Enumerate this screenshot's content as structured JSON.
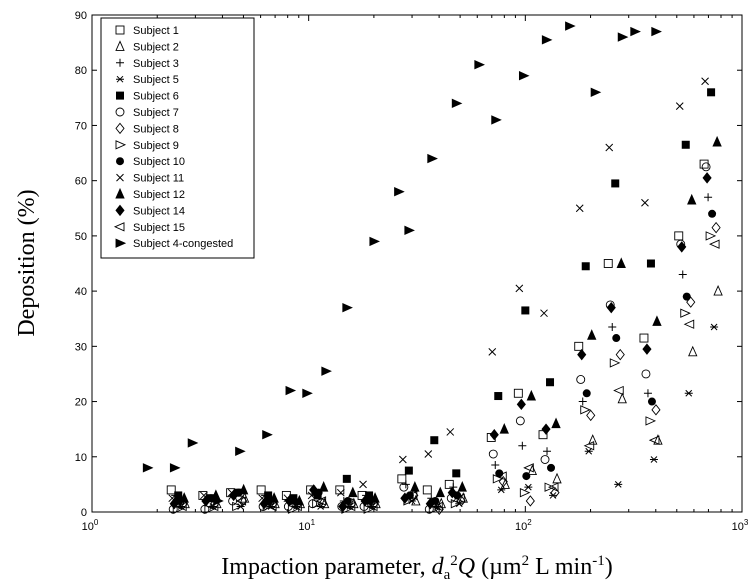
{
  "chart_data": {
    "type": "scatter",
    "xscale": "log",
    "xlim": [
      1,
      1000
    ],
    "ylim": [
      0,
      90
    ],
    "grid": false,
    "legend_position": "top-left",
    "x_ticks": [
      1,
      10,
      100,
      1000
    ],
    "x_tick_labels": [
      {
        "base": "10",
        "exp": "0"
      },
      {
        "base": "10",
        "exp": "1"
      },
      {
        "base": "10",
        "exp": "2"
      },
      {
        "base": "10",
        "exp": "3"
      }
    ],
    "y_ticks": [
      0,
      10,
      20,
      30,
      40,
      50,
      60,
      70,
      80,
      90
    ],
    "xlabel": {
      "prefix": "Impaction parameter, ",
      "d": "d",
      "d_sub": "a",
      "d_sup": "2",
      "q": "Q",
      "units_open": " (µm",
      "units_sup1": "2",
      "units_mid": " L min",
      "units_sup2": "-1",
      "units_close": ")"
    },
    "ylabel": "Deposition (%)",
    "x_groups": [
      2.5,
      3.5,
      4.7,
      6.5,
      8.5,
      11,
      15,
      19,
      29,
      38,
      48,
      75,
      100,
      130,
      190,
      260,
      380,
      550,
      720
    ],
    "series": [
      {
        "name": "Subject 1",
        "marker": "square-open",
        "values": [
          4,
          3,
          3.5,
          4,
          3,
          4,
          4,
          3,
          6,
          4,
          5,
          13.5,
          21.5,
          14,
          30,
          45,
          31.5,
          50,
          63
        ]
      },
      {
        "name": "Subject 2",
        "marker": "triangle-up-open",
        "values": [
          1.5,
          1.5,
          2.5,
          1.5,
          1.5,
          1.5,
          1.5,
          1.5,
          2,
          1.5,
          2.5,
          5,
          7.5,
          6,
          13,
          20.5,
          13,
          29,
          40
        ]
      },
      {
        "name": "Subject 3",
        "marker": "plus",
        "values": [
          3,
          2,
          3,
          3,
          2,
          3,
          2,
          3,
          5,
          2.5,
          4.5,
          8.5,
          12,
          11,
          20,
          33.5,
          21.5,
          43,
          57
        ]
      },
      {
        "name": "Subject 5",
        "marker": "asterisk",
        "values": [
          1,
          1,
          1,
          1,
          1,
          1,
          1,
          1,
          2,
          1,
          1.5,
          4,
          4.5,
          3,
          11,
          5,
          9.5,
          21.5,
          33.5
        ]
      },
      {
        "name": "Subject 6",
        "marker": "square-filled",
        "values": [
          3,
          2.5,
          3.5,
          3,
          2.5,
          3,
          6,
          3,
          7.5,
          13,
          7,
          21,
          36.5,
          23.5,
          44.5,
          59.5,
          45,
          66.5,
          76
        ]
      },
      {
        "name": "Subject 7",
        "marker": "circle-open",
        "values": [
          0.5,
          0.5,
          2,
          1,
          1,
          1.5,
          1,
          1,
          4.5,
          0.5,
          2.5,
          10.5,
          16.5,
          9.5,
          24,
          37.5,
          25,
          48.5,
          62.5
        ]
      },
      {
        "name": "Subject 8",
        "marker": "diamond-open",
        "values": [
          1.5,
          1.5,
          2,
          1.5,
          1.5,
          1.5,
          1.5,
          1.5,
          3,
          0.5,
          2,
          5.5,
          2,
          3.5,
          17.5,
          28.5,
          18.5,
          38,
          51.5
        ]
      },
      {
        "name": "Subject 9",
        "marker": "triangle-right-open",
        "values": [
          0.5,
          0.5,
          1,
          1,
          0.5,
          1.5,
          0.5,
          0.5,
          2,
          0.5,
          1.5,
          6,
          3.5,
          4.5,
          18.5,
          27,
          16.5,
          36,
          50
        ]
      },
      {
        "name": "Subject 10",
        "marker": "circle-filled",
        "values": [
          2,
          2.5,
          3.5,
          2,
          2,
          3.5,
          2,
          2,
          3,
          2,
          3,
          7,
          6.5,
          8,
          21.5,
          31.5,
          20,
          39,
          54
        ]
      },
      {
        "name": "Subject 11",
        "marker": "x",
        "values": [
          2.5,
          3,
          3.5,
          2.5,
          2.5,
          3,
          3.5,
          5,
          9.5,
          10.5,
          14.5,
          29,
          40.5,
          36,
          55,
          66,
          56,
          73.5,
          78
        ]
      },
      {
        "name": "Subject 12",
        "marker": "triangle-up-filled",
        "values": [
          2.5,
          3,
          4,
          2.5,
          2,
          4.5,
          3.5,
          2.5,
          4.5,
          3.5,
          4.5,
          15,
          21,
          16,
          32,
          45,
          34.5,
          56.5,
          67
        ]
      },
      {
        "name": "Subject 14",
        "marker": "diamond-filled",
        "values": [
          1.5,
          2,
          3,
          1.5,
          2,
          4,
          1,
          2,
          2.5,
          1.5,
          3.5,
          14,
          19.5,
          15,
          28.5,
          37,
          29.5,
          48,
          60.5
        ]
      },
      {
        "name": "Subject 15",
        "marker": "triangle-left-open",
        "values": [
          1,
          1,
          2,
          1,
          1,
          2,
          1,
          1,
          3,
          1,
          2.5,
          6.5,
          8,
          4.5,
          12,
          22,
          13,
          34,
          48.5
        ]
      },
      {
        "name": "Subject 4-congested",
        "marker": "triangle-right-filled",
        "x": [
          1.8,
          2.4,
          2.9,
          3.8,
          4.8,
          6.4,
          8.2,
          9.8,
          12,
          15,
          20,
          26,
          29,
          37,
          48,
          61,
          73,
          98,
          125,
          160,
          210,
          280,
          320,
          400
        ],
        "values": [
          8,
          8,
          12.5,
          2,
          11,
          14,
          22,
          21.5,
          25.5,
          37,
          49,
          58,
          51,
          64,
          74,
          81,
          71,
          79,
          85.5,
          88,
          76,
          86,
          87,
          87
        ]
      }
    ]
  }
}
